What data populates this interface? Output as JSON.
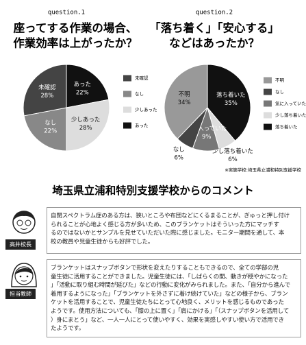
{
  "chart_data": [
    {
      "type": "pie",
      "question": "question.1",
      "title": [
        "座ってする作業の場合、",
        "作業効率は上がったか？"
      ],
      "categories": [
        "あった",
        "少しあった",
        "なし",
        "未確認"
      ],
      "values": [
        22,
        28,
        22,
        28
      ],
      "value_labels": [
        "22%",
        "28%",
        "22%",
        "28%"
      ],
      "colors": [
        "#111111",
        "#dddddd",
        "#888888",
        "#444444"
      ]
    },
    {
      "type": "pie",
      "question": "question.2",
      "title": [
        "「落ち着く」「安心する」",
        "などはあったか？"
      ],
      "categories": [
        "落ち着いた",
        "少し落ち着いた",
        "気に入っていた",
        "なし",
        "不明"
      ],
      "values": [
        35,
        6,
        9,
        6,
        34
      ],
      "value_labels": [
        "35%",
        "6%",
        "9%",
        "6%",
        "34%"
      ],
      "colors": [
        "#111111",
        "#dddddd",
        "#777777",
        "#444444",
        "#999999"
      ]
    }
  ],
  "note": "※実施学校:埼玉県立浦和特別支援学校",
  "section_title": "埼玉県立浦和特別支援学校からのコメント",
  "comments": [
    {
      "speaker": "高井校長",
      "lines": [
        "自閉スペクトラム症のある方は、狭いところや布団などにくるまることが、ぎゅっと押し付け",
        "られることが心地よく感じる方が多いため、このブランケットはそういった方にマッチす",
        "るのではないかとサンプルを見せていただいた際に感じました。モニター期間を通して、本",
        "校の教員や児童生徒からも好評でした。"
      ]
    },
    {
      "speaker": "担当教師",
      "lines": [
        "ブランケットはスナップボタンで形状を変えたりすることもできるので、全ての学部の児",
        "童生徒に活用することができました。児童生徒には、「しばらくの間、動きが穏やかになった",
        "」「活動に取り組む時間が延びた」などの行動に変化がみられました。また、「自分から進んで",
        "着用するようになった」「ブランケットを外さずに着け続けていた」などの様子から、ブラン",
        "ケットを活用することで、児童生徒たちにとって心地良く、メリットを感じるものであった",
        "ようです。使用方法についても、「膝の上に置く」「肩にかける」「（スナップボタンを活用して",
        "）身にまとう」など、一人一人にとって使いやすく、効果を実感しやすい使い方で活用でき",
        "たようです。"
      ]
    }
  ]
}
